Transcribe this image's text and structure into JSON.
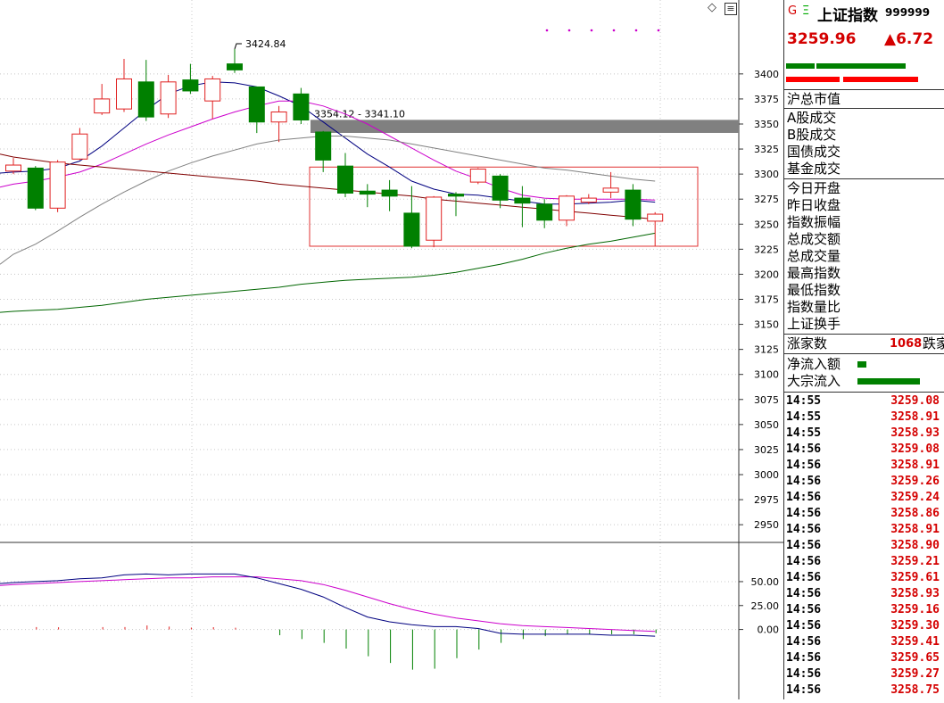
{
  "header": {
    "g_icon": "G",
    "e_icon": "Ξ",
    "index_name": "上证指数",
    "index_code": "999999",
    "price": "3259.96",
    "change": "▲6.72",
    "colors": {
      "up": "#d40000",
      "down": "#008000"
    }
  },
  "toolbar": {
    "diamond_icon": "◇",
    "menu_icon": "≡"
  },
  "side_labels": {
    "total_market_value": "沪总市值",
    "a_share_turnover": "A股成交",
    "b_share_turnover": "B股成交",
    "bond_turnover": "国债成交",
    "fund_turnover": "基金成交",
    "open_today": "今日开盘",
    "prev_close": "昨日收盘",
    "amplitude": "指数振幅",
    "total_amount": "总成交额",
    "total_volume": "总成交量",
    "high": "最高指数",
    "low": "最低指数",
    "volume_ratio": "指数量比",
    "turnover_rate": "上证换手",
    "advancers": "涨家数",
    "advancers_value": "1068",
    "decliners": "跌家",
    "net_inflow": "净流入额",
    "block_inflow": "大宗流入"
  },
  "ticks": [
    {
      "time": "14:55",
      "value": "3259.08"
    },
    {
      "time": "14:55",
      "value": "3258.91"
    },
    {
      "time": "14:55",
      "value": "3258.93"
    },
    {
      "time": "14:56",
      "value": "3259.08"
    },
    {
      "time": "14:56",
      "value": "3258.91"
    },
    {
      "time": "14:56",
      "value": "3259.26"
    },
    {
      "time": "14:56",
      "value": "3259.24"
    },
    {
      "time": "14:56",
      "value": "3258.86"
    },
    {
      "time": "14:56",
      "value": "3258.91"
    },
    {
      "time": "14:56",
      "value": "3258.90"
    },
    {
      "time": "14:56",
      "value": "3259.21"
    },
    {
      "time": "14:56",
      "value": "3259.61"
    },
    {
      "time": "14:56",
      "value": "3258.93"
    },
    {
      "time": "14:56",
      "value": "3259.16"
    },
    {
      "time": "14:56",
      "value": "3259.30"
    },
    {
      "time": "14:56",
      "value": "3259.41"
    },
    {
      "time": "14:56",
      "value": "3259.65"
    },
    {
      "time": "14:56",
      "value": "3259.27"
    },
    {
      "time": "14:56",
      "value": "3258.75"
    }
  ],
  "chart_data": [
    {
      "type": "candlestick",
      "y_ticks": [
        "3400",
        "3375",
        "3350",
        "3325",
        "3300",
        "3275",
        "3250",
        "3225",
        "3200",
        "3175",
        "3150",
        "3125",
        "3100",
        "3075",
        "3050",
        "3025",
        "3000",
        "2975",
        "2950"
      ],
      "ylim": [
        2943,
        3415
      ],
      "annotations": {
        "peak": "3424.84",
        "gap": "3354.12 - 3341.10"
      },
      "candles": [
        {
          "o": 3303,
          "c": 3309,
          "h": 3316,
          "l": 3300
        },
        {
          "o": 3306,
          "c": 3266,
          "h": 3308,
          "l": 3264
        },
        {
          "o": 3266,
          "c": 3312,
          "h": 3314,
          "l": 3262
        },
        {
          "o": 3315,
          "c": 3340,
          "h": 3346,
          "l": 3314
        },
        {
          "o": 3361,
          "c": 3375,
          "h": 3390,
          "l": 3359
        },
        {
          "o": 3365,
          "c": 3395,
          "h": 3415,
          "l": 3362
        },
        {
          "o": 3392,
          "c": 3357,
          "h": 3414,
          "l": 3353
        },
        {
          "o": 3360,
          "c": 3392,
          "h": 3399,
          "l": 3356
        },
        {
          "o": 3394,
          "c": 3383,
          "h": 3410,
          "l": 3380
        },
        {
          "o": 3373,
          "c": 3395,
          "h": 3398,
          "l": 3355
        },
        {
          "o": 3410,
          "c": 3404,
          "h": 3424.84,
          "l": 3401
        },
        {
          "o": 3387,
          "c": 3352,
          "h": 3387,
          "l": 3341
        },
        {
          "o": 3352,
          "c": 3362,
          "h": 3368,
          "l": 3332
        },
        {
          "o": 3380,
          "c": 3354,
          "h": 3386,
          "l": 3350
        },
        {
          "o": 3342,
          "c": 3314,
          "h": 3343,
          "l": 3302
        },
        {
          "o": 3308,
          "c": 3281,
          "h": 3321,
          "l": 3277
        },
        {
          "o": 3283,
          "c": 3280,
          "h": 3290,
          "l": 3267
        },
        {
          "o": 3284,
          "c": 3278,
          "h": 3294,
          "l": 3263
        },
        {
          "o": 3261,
          "c": 3228,
          "h": 3288,
          "l": 3226
        },
        {
          "o": 3234,
          "c": 3277,
          "h": 3278,
          "l": 3227
        },
        {
          "o": 3280,
          "c": 3278,
          "h": 3282,
          "l": 3258
        },
        {
          "o": 3292,
          "c": 3305,
          "h": 3306,
          "l": 3290
        },
        {
          "o": 3298,
          "c": 3274,
          "h": 3300,
          "l": 3266
        },
        {
          "o": 3276,
          "c": 3271,
          "h": 3288,
          "l": 3247
        },
        {
          "o": 3270,
          "c": 3254,
          "h": 3275,
          "l": 3246
        },
        {
          "o": 3254,
          "c": 3278,
          "h": 3279,
          "l": 3248
        },
        {
          "o": 3272,
          "c": 3276,
          "h": 3280,
          "l": 3270
        },
        {
          "o": 3282,
          "c": 3286,
          "h": 3302,
          "l": 3276
        },
        {
          "o": 3284,
          "c": 3255,
          "h": 3290,
          "l": 3248
        },
        {
          "o": 3253,
          "c": 3260,
          "h": 3262,
          "l": 3228
        }
      ],
      "ma_series": [
        {
          "color": "#000080",
          "values": [
            3302,
            3303,
            3306,
            3313,
            3328,
            3346,
            3364,
            3380,
            3388,
            3392,
            3391,
            3387,
            3378,
            3368,
            3352,
            3336,
            3320,
            3307,
            3293,
            3285,
            3280,
            3279,
            3276,
            3273,
            3270,
            3270,
            3271,
            3272,
            3274,
            3272
          ]
        },
        {
          "color": "#cc00cc",
          "values": [
            3290,
            3293,
            3297,
            3302,
            3310,
            3320,
            3330,
            3339,
            3347,
            3355,
            3362,
            3368,
            3373,
            3373,
            3368,
            3360,
            3350,
            3338,
            3326,
            3314,
            3303,
            3295,
            3286,
            3279,
            3276,
            3275,
            3275,
            3275,
            3275,
            3274
          ]
        },
        {
          "color": "#808080",
          "values": [
            3220,
            3230,
            3243,
            3257,
            3270,
            3282,
            3293,
            3303,
            3311,
            3318,
            3324,
            3330,
            3334,
            3336,
            3338,
            3338,
            3336,
            3334,
            3330,
            3326,
            3322,
            3318,
            3314,
            3310,
            3306,
            3304,
            3301,
            3298,
            3295,
            3293
          ]
        },
        {
          "color": "#800000",
          "values": [
            3317,
            3314,
            3311,
            3309,
            3307,
            3305,
            3303,
            3301,
            3299,
            3297,
            3295,
            3293,
            3290,
            3288,
            3286,
            3284,
            3282,
            3280,
            3278,
            3275,
            3273,
            3271,
            3269,
            3267,
            3265,
            3263,
            3261,
            3259,
            3257,
            3255
          ]
        },
        {
          "color": "#006600",
          "values": [
            3163,
            3164,
            3165,
            3167,
            3169,
            3172,
            3175,
            3177,
            3179,
            3181,
            3183,
            3185,
            3187,
            3190,
            3192,
            3194,
            3195,
            3196,
            3197,
            3199,
            3202,
            3206,
            3210,
            3215,
            3221,
            3226,
            3230,
            3233,
            3237,
            3241
          ]
        }
      ]
    },
    {
      "type": "bar",
      "y_ticks": [
        "50.00",
        "25.00",
        "0.00"
      ],
      "ylim": [
        -47,
        63
      ],
      "macd_bars": [
        0,
        2.5,
        2.3,
        0,
        2.5,
        2.5,
        4.2,
        3.0,
        2.0,
        2.4,
        1.8,
        0,
        -6,
        -10,
        -14,
        -20,
        -28,
        -35,
        -42,
        -41,
        -30,
        -21,
        -14,
        -10,
        -7,
        -5,
        -5,
        -5,
        -5,
        -4
      ],
      "dif": [
        49,
        50,
        51,
        53,
        54,
        57,
        58,
        57,
        58,
        58,
        58,
        54,
        48,
        42,
        34,
        23,
        13,
        8,
        5,
        3,
        3,
        1,
        -4,
        -5,
        -5,
        -5,
        -5,
        -6,
        -6,
        -7
      ],
      "dea": [
        47,
        48,
        49,
        50,
        51,
        52,
        53,
        54,
        54,
        55,
        55,
        55,
        53,
        51,
        47,
        41,
        34,
        27,
        21,
        16,
        12,
        9,
        6,
        4,
        3,
        2,
        1,
        0,
        -1,
        -2
      ]
    }
  ]
}
